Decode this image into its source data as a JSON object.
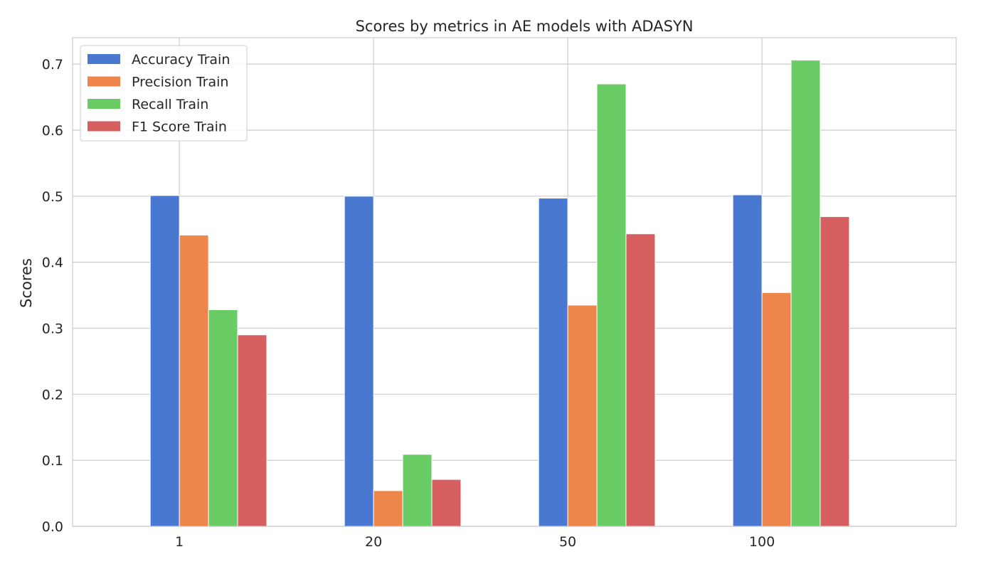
{
  "chart_data": {
    "type": "bar",
    "title": "Scores by metrics in AE models with ADASYN",
    "xlabel": "",
    "ylabel": "Scores",
    "categories": [
      "1",
      "20",
      "50",
      "100"
    ],
    "series": [
      {
        "name": "Accuracy Train",
        "color": "#4878cf",
        "values": [
          0.501,
          0.5,
          0.497,
          0.502
        ]
      },
      {
        "name": "Precision Train",
        "color": "#ee854a",
        "values": [
          0.441,
          0.054,
          0.335,
          0.354
        ]
      },
      {
        "name": "Recall Train",
        "color": "#6acc64",
        "values": [
          0.328,
          0.109,
          0.67,
          0.706
        ]
      },
      {
        "name": "F1 Score Train",
        "color": "#d65f5f",
        "values": [
          0.29,
          0.071,
          0.443,
          0.469
        ]
      }
    ],
    "ylim": [
      0,
      0.74
    ],
    "yticks": [
      "0.0",
      "0.1",
      "0.2",
      "0.3",
      "0.4",
      "0.5",
      "0.6",
      "0.7"
    ],
    "grid": true,
    "legend_position": "top-left"
  }
}
